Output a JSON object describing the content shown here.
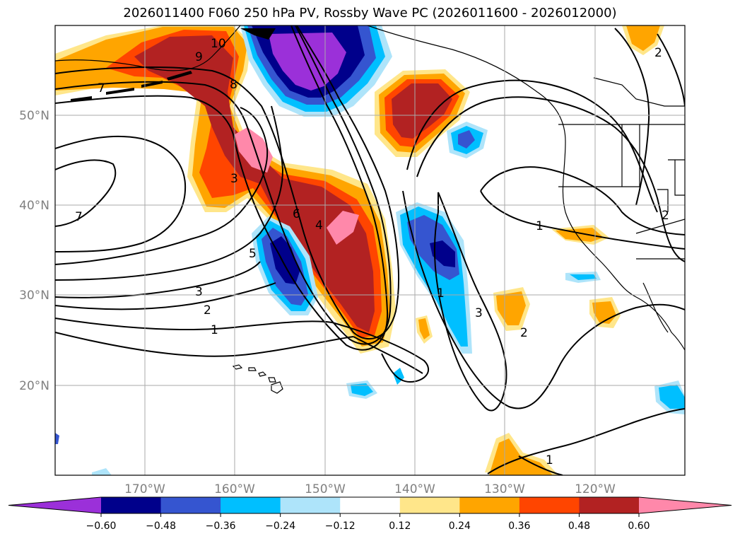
{
  "title": "2026011400 F060 250 hPa PV, Rossby Wave PC (2026011600 - 2026012000)",
  "longitude_labels": [
    "170°W",
    "160°W",
    "150°W",
    "140°W",
    "130°W",
    "120°W"
  ],
  "latitude_labels": [
    "50°N",
    "40°N",
    "30°N",
    "20°N"
  ],
  "colorbar": {
    "tick_labels": [
      "−0.60",
      "−0.48",
      "−0.36",
      "−0.24",
      "−0.12",
      "0.12",
      "0.24",
      "0.36",
      "0.48",
      "0.60"
    ],
    "colors": [
      "#9b30d9",
      "#00008b",
      "#3555d0",
      "#00bfff",
      "#aee4fa",
      "#ffffff",
      "#ffe68a",
      "#ffa500",
      "#ff4500",
      "#b22222",
      "#ff88aa"
    ]
  },
  "contour_labels": [
    "10",
    "9",
    "8",
    "7",
    "6",
    "5",
    "4",
    "3",
    "3",
    "2",
    "1",
    "1",
    "1",
    "1",
    "2",
    "2",
    "2",
    "3",
    "7"
  ]
}
